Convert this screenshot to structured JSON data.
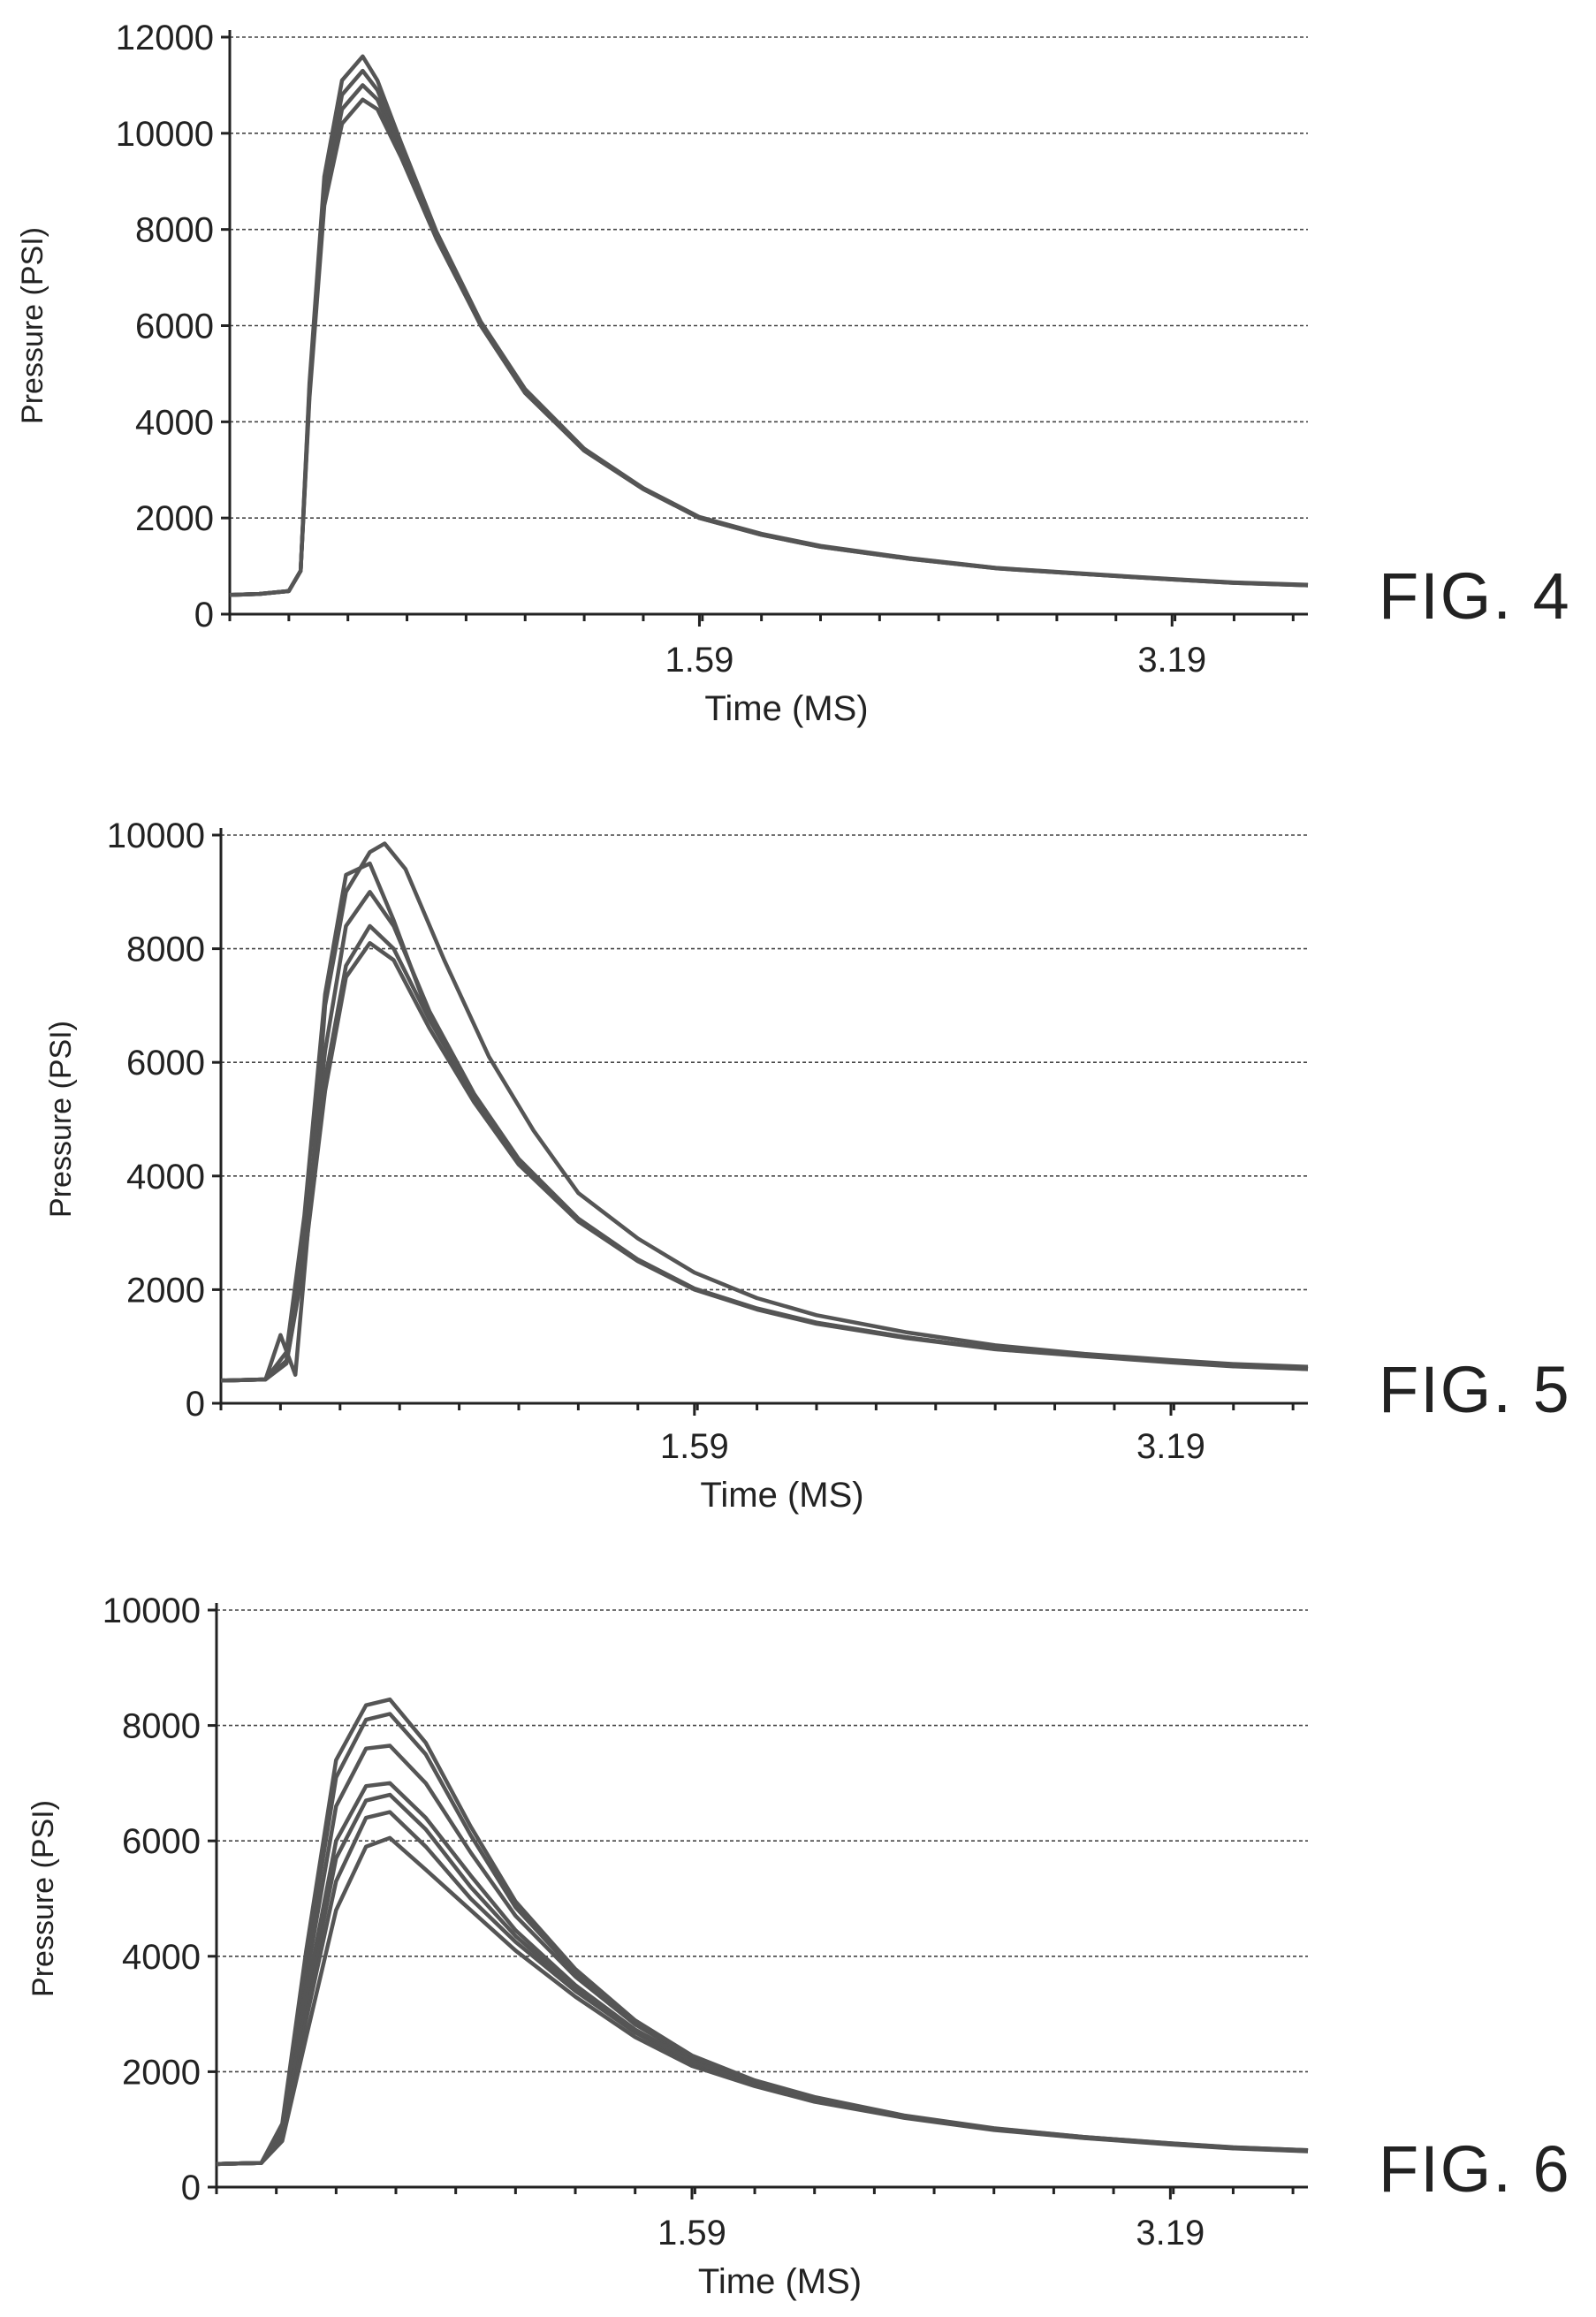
{
  "chart_data": [
    {
      "type": "line",
      "figure_label": "FIG. 4",
      "xlabel": "Time (MS)",
      "ylabel": "Pressure (PSI)",
      "xlim": [
        0,
        3.65
      ],
      "ylim": [
        0,
        12000
      ],
      "yticks": [
        0,
        2000,
        4000,
        6000,
        8000,
        10000,
        12000
      ],
      "xticks": [
        1.59,
        3.19
      ],
      "grid": true,
      "series": [
        {
          "peak": 10700,
          "x": [
            0.0,
            0.1,
            0.2,
            0.24,
            0.27,
            0.32,
            0.38,
            0.45,
            0.5,
            0.58,
            0.7,
            0.85,
            1.0,
            1.2,
            1.4,
            1.59,
            1.8,
            2.0,
            2.3,
            2.6,
            2.9,
            3.19,
            3.4,
            3.65
          ],
          "values": [
            400,
            420,
            480,
            900,
            4500,
            8500,
            10200,
            10700,
            10500,
            9500,
            7800,
            6000,
            4600,
            3400,
            2600,
            2000,
            1650,
            1400,
            1150,
            950,
            830,
            720,
            650,
            600
          ]
        },
        {
          "peak": 11000,
          "x": [
            0.0,
            0.1,
            0.2,
            0.24,
            0.27,
            0.32,
            0.38,
            0.45,
            0.5,
            0.58,
            0.7,
            0.85,
            1.0,
            1.2,
            1.4,
            1.59,
            1.8,
            2.0,
            2.3,
            2.6,
            2.9,
            3.19,
            3.4,
            3.65
          ],
          "values": [
            400,
            420,
            480,
            900,
            4600,
            8700,
            10500,
            11000,
            10700,
            9600,
            7850,
            6000,
            4600,
            3400,
            2600,
            2000,
            1650,
            1400,
            1150,
            950,
            830,
            720,
            650,
            600
          ]
        },
        {
          "peak": 11300,
          "x": [
            0.0,
            0.1,
            0.2,
            0.24,
            0.27,
            0.32,
            0.38,
            0.45,
            0.5,
            0.58,
            0.7,
            0.85,
            1.0,
            1.2,
            1.4,
            1.59,
            1.8,
            2.0,
            2.3,
            2.6,
            2.9,
            3.19,
            3.4,
            3.65
          ],
          "values": [
            400,
            420,
            480,
            900,
            4700,
            8900,
            10800,
            11300,
            10900,
            9700,
            7900,
            6050,
            4650,
            3420,
            2610,
            2010,
            1660,
            1410,
            1160,
            955,
            835,
            725,
            655,
            605
          ]
        },
        {
          "peak": 11600,
          "x": [
            0.0,
            0.1,
            0.2,
            0.24,
            0.27,
            0.32,
            0.38,
            0.45,
            0.5,
            0.58,
            0.7,
            0.85,
            1.0,
            1.2,
            1.4,
            1.59,
            1.8,
            2.0,
            2.3,
            2.6,
            2.9,
            3.19,
            3.4,
            3.65
          ],
          "values": [
            400,
            420,
            480,
            900,
            4800,
            9100,
            11100,
            11600,
            11100,
            9800,
            7950,
            6080,
            4680,
            3440,
            2620,
            2020,
            1670,
            1420,
            1165,
            960,
            840,
            730,
            660,
            610
          ]
        }
      ]
    },
    {
      "type": "line",
      "figure_label": "FIG. 5",
      "xlabel": "Time (MS)",
      "ylabel": "Pressure (PSI)",
      "xlim": [
        0,
        3.65
      ],
      "ylim": [
        0,
        10000
      ],
      "yticks": [
        0,
        2000,
        4000,
        6000,
        8000,
        10000
      ],
      "xticks": [
        1.59,
        3.19
      ],
      "grid": true,
      "series": [
        {
          "x": [
            0.0,
            0.15,
            0.22,
            0.28,
            0.35,
            0.42,
            0.5,
            0.58,
            0.7,
            0.85,
            1.0,
            1.2,
            1.4,
            1.59,
            1.8,
            2.0,
            2.3,
            2.6,
            2.9,
            3.19,
            3.4,
            3.65
          ],
          "values": [
            400,
            420,
            700,
            2500,
            5500,
            7500,
            8100,
            7800,
            6600,
            5300,
            4200,
            3200,
            2500,
            2000,
            1650,
            1400,
            1150,
            950,
            830,
            720,
            650,
            600
          ]
        },
        {
          "x": [
            0.0,
            0.15,
            0.22,
            0.28,
            0.35,
            0.42,
            0.5,
            0.58,
            0.7,
            0.85,
            1.0,
            1.2,
            1.4,
            1.59,
            1.8,
            2.0,
            2.3,
            2.6,
            2.9,
            3.19,
            3.4,
            3.65
          ],
          "values": [
            400,
            420,
            700,
            2600,
            5700,
            7700,
            8400,
            8000,
            6750,
            5400,
            4250,
            3230,
            2520,
            2010,
            1660,
            1410,
            1160,
            955,
            835,
            725,
            655,
            605
          ]
        },
        {
          "x": [
            0.0,
            0.15,
            0.22,
            0.28,
            0.35,
            0.42,
            0.5,
            0.58,
            0.7,
            0.85,
            1.0,
            1.2,
            1.4,
            1.59,
            1.8,
            2.0,
            2.3,
            2.6,
            2.9,
            3.19,
            3.4,
            3.65
          ],
          "values": [
            400,
            420,
            750,
            2800,
            6200,
            8400,
            9000,
            8400,
            6900,
            5450,
            4300,
            3250,
            2530,
            2020,
            1670,
            1420,
            1165,
            960,
            840,
            730,
            660,
            610
          ]
        },
        {
          "x": [
            0.0,
            0.15,
            0.22,
            0.28,
            0.35,
            0.42,
            0.5,
            0.58,
            0.7,
            0.85,
            1.0,
            1.2,
            1.4,
            1.59,
            1.8,
            2.0,
            2.3,
            2.6,
            2.9,
            3.19,
            3.4,
            3.65
          ],
          "values": [
            400,
            420,
            900,
            3300,
            7200,
            9300,
            9500,
            8500,
            6800,
            5400,
            4270,
            3240,
            2525,
            2015,
            1665,
            1415,
            1160,
            958,
            838,
            728,
            658,
            608
          ]
        },
        {
          "x": [
            0.0,
            0.15,
            0.2,
            0.25,
            0.3,
            0.35,
            0.42,
            0.5,
            0.55,
            0.62,
            0.75,
            0.9,
            1.05,
            1.2,
            1.4,
            1.59,
            1.8,
            2.0,
            2.3,
            2.6,
            2.9,
            3.19,
            3.4,
            3.65
          ],
          "values": [
            400,
            420,
            1200,
            500,
            3500,
            7000,
            9000,
            9700,
            9850,
            9400,
            7800,
            6100,
            4800,
            3700,
            2900,
            2300,
            1850,
            1550,
            1250,
            1020,
            870,
            760,
            690,
            640
          ]
        }
      ]
    },
    {
      "type": "line",
      "figure_label": "FIG. 6",
      "xlabel": "Time (MS)",
      "ylabel": "Pressure (PSI)",
      "xlim": [
        0,
        3.65
      ],
      "ylim": [
        0,
        10000
      ],
      "yticks": [
        0,
        2000,
        4000,
        6000,
        8000,
        10000
      ],
      "xticks": [
        1.59,
        3.19
      ],
      "grid": true,
      "series": [
        {
          "x": [
            0.0,
            0.15,
            0.22,
            0.3,
            0.4,
            0.5,
            0.58,
            0.7,
            0.85,
            1.0,
            1.2,
            1.4,
            1.59,
            1.8,
            2.0,
            2.3,
            2.6,
            2.9,
            3.19,
            3.4,
            3.65
          ],
          "values": [
            400,
            420,
            800,
            2600,
            4800,
            5900,
            6050,
            5500,
            4800,
            4100,
            3300,
            2600,
            2100,
            1750,
            1480,
            1200,
            990,
            850,
            740,
            670,
            620
          ]
        },
        {
          "x": [
            0.0,
            0.15,
            0.22,
            0.3,
            0.4,
            0.5,
            0.58,
            0.7,
            0.85,
            1.0,
            1.2,
            1.4,
            1.59,
            1.8,
            2.0,
            2.3,
            2.6,
            2.9,
            3.19,
            3.4,
            3.65
          ],
          "values": [
            400,
            420,
            850,
            2900,
            5300,
            6400,
            6500,
            5900,
            5000,
            4250,
            3400,
            2680,
            2150,
            1780,
            1500,
            1210,
            995,
            855,
            745,
            675,
            625
          ]
        },
        {
          "x": [
            0.0,
            0.15,
            0.22,
            0.3,
            0.4,
            0.5,
            0.58,
            0.7,
            0.85,
            1.0,
            1.2,
            1.4,
            1.59,
            1.8,
            2.0,
            2.3,
            2.6,
            2.9,
            3.19,
            3.4,
            3.65
          ],
          "values": [
            400,
            420,
            900,
            3100,
            5700,
            6700,
            6800,
            6200,
            5200,
            4350,
            3450,
            2700,
            2170,
            1790,
            1510,
            1215,
            1000,
            858,
            748,
            678,
            628
          ]
        },
        {
          "x": [
            0.0,
            0.15,
            0.22,
            0.3,
            0.4,
            0.5,
            0.58,
            0.7,
            0.85,
            1.0,
            1.2,
            1.4,
            1.59,
            1.8,
            2.0,
            2.3,
            2.6,
            2.9,
            3.19,
            3.4,
            3.65
          ],
          "values": [
            400,
            420,
            950,
            3300,
            6000,
            6950,
            7000,
            6400,
            5400,
            4450,
            3500,
            2730,
            2190,
            1800,
            1520,
            1220,
            1005,
            862,
            752,
            682,
            632
          ]
        },
        {
          "x": [
            0.0,
            0.15,
            0.22,
            0.3,
            0.4,
            0.5,
            0.58,
            0.7,
            0.85,
            1.0,
            1.2,
            1.4,
            1.59,
            1.8,
            2.0,
            2.3,
            2.6,
            2.9,
            3.19,
            3.4,
            3.65
          ],
          "values": [
            400,
            420,
            1000,
            3600,
            6600,
            7600,
            7650,
            7000,
            5800,
            4700,
            3650,
            2820,
            2240,
            1830,
            1540,
            1230,
            1010,
            865,
            755,
            685,
            635
          ]
        },
        {
          "x": [
            0.0,
            0.15,
            0.22,
            0.3,
            0.4,
            0.5,
            0.58,
            0.7,
            0.85,
            1.0,
            1.2,
            1.4,
            1.59,
            1.8,
            2.0,
            2.3,
            2.6,
            2.9,
            3.19,
            3.4,
            3.65
          ],
          "values": [
            400,
            420,
            1050,
            3900,
            7100,
            8100,
            8200,
            7500,
            6100,
            4850,
            3720,
            2860,
            2260,
            1840,
            1550,
            1235,
            1015,
            868,
            758,
            688,
            638
          ]
        },
        {
          "x": [
            0.0,
            0.15,
            0.22,
            0.3,
            0.4,
            0.5,
            0.58,
            0.7,
            0.85,
            1.0,
            1.2,
            1.4,
            1.59,
            1.8,
            2.0,
            2.3,
            2.6,
            2.9,
            3.19,
            3.4,
            3.65
          ],
          "values": [
            400,
            420,
            1100,
            4100,
            7400,
            8350,
            8450,
            7700,
            6250,
            4950,
            3780,
            2890,
            2280,
            1850,
            1560,
            1240,
            1020,
            870,
            760,
            690,
            640
          ]
        }
      ]
    }
  ]
}
